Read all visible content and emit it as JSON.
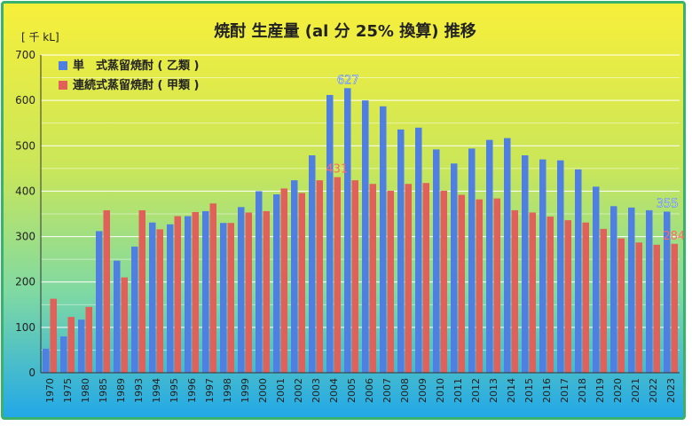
{
  "chart_data": {
    "type": "bar",
    "title": "焼酎 生産量 (al 分 25% 換算) 推移",
    "unit_label": "[ 千 kL]",
    "ylim": [
      0,
      700
    ],
    "yticks": [
      0,
      100,
      200,
      300,
      400,
      500,
      600,
      700
    ],
    "grid": true,
    "legend_position": "top-left",
    "categories": [
      "1970",
      "1975",
      "1980",
      "1985",
      "1989",
      "1993",
      "1994",
      "1995",
      "1996",
      "1997",
      "1998",
      "1999",
      "2000",
      "2001",
      "2002",
      "2003",
      "2004",
      "2005",
      "2006",
      "2007",
      "2008",
      "2009",
      "2010",
      "2011",
      "2012",
      "2013",
      "2014",
      "2015",
      "2016",
      "2017",
      "2018",
      "2019",
      "2020",
      "2021",
      "2022",
      "2023"
    ],
    "series": [
      {
        "name": "単　式蒸留焼酎 ( 乙類 )",
        "color": "#4f7fe0",
        "values": [
          53,
          80,
          117,
          312,
          247,
          278,
          331,
          327,
          345,
          356,
          330,
          365,
          400,
          393,
          424,
          479,
          612,
          627,
          600,
          587,
          536,
          540,
          492,
          461,
          494,
          513,
          517,
          479,
          470,
          468,
          448,
          410,
          367,
          364,
          358,
          355
        ]
      },
      {
        "name": "連続式蒸留焼酎 ( 甲類 )",
        "color": "#e0605a",
        "values": [
          163,
          123,
          145,
          358,
          210,
          358,
          316,
          345,
          354,
          373,
          330,
          353,
          356,
          406,
          396,
          424,
          431,
          424,
          416,
          401,
          416,
          418,
          401,
          392,
          382,
          384,
          358,
          353,
          344,
          336,
          331,
          317,
          296,
          287,
          282,
          284
        ]
      }
    ],
    "annotations": [
      {
        "series": 0,
        "category": "2005",
        "text": "627",
        "color": "#ffffff"
      },
      {
        "series": 1,
        "category": "2004",
        "text": "431",
        "color": "#ff6b66"
      },
      {
        "series": 0,
        "category": "2023",
        "text": "355",
        "color": "#ffffff"
      },
      {
        "series": 1,
        "category": "2023",
        "text": "284",
        "color": "#ff6b66"
      }
    ]
  }
}
